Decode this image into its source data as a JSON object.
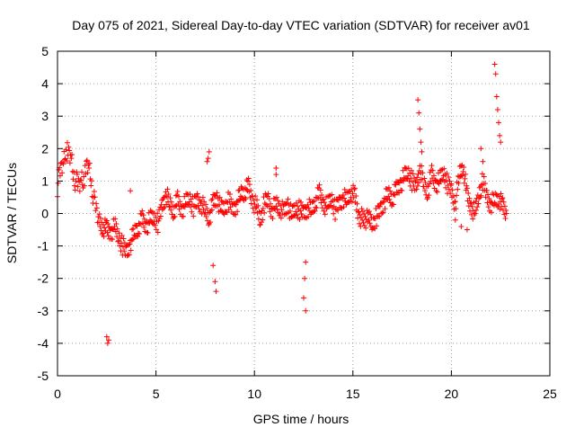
{
  "chart_data": {
    "type": "scatter",
    "title": "Day 075 of 2021, Sidereal Day-to-day VTEC variation (SDTVAR) for receiver av01",
    "xlabel": "GPS time / hours",
    "ylabel": "SDTVAR / TECUs",
    "xlim": [
      0,
      25
    ],
    "ylim": [
      -5,
      5
    ],
    "xticks": [
      "0",
      "5",
      "10",
      "15",
      "20",
      "25"
    ],
    "yticks": [
      "-5",
      "-4",
      "-3",
      "-2",
      "-1",
      "0",
      "1",
      "2",
      "3",
      "4",
      "5"
    ],
    "grid": true,
    "marker": "+",
    "color": "#ff0000",
    "series": [
      {
        "name": "SDTVAR",
        "trend": [
          [
            0.0,
            0.8
          ],
          [
            0.1,
            1.2
          ],
          [
            0.2,
            1.5
          ],
          [
            0.3,
            1.6
          ],
          [
            0.4,
            1.9
          ],
          [
            0.5,
            1.9
          ],
          [
            0.6,
            1.8
          ],
          [
            0.7,
            1.7
          ],
          [
            0.8,
            1.2
          ],
          [
            0.9,
            1.0
          ],
          [
            1.0,
            1.0
          ],
          [
            1.1,
            0.9
          ],
          [
            1.2,
            1.1
          ],
          [
            1.3,
            1.0
          ],
          [
            1.4,
            1.2
          ],
          [
            1.5,
            1.5
          ],
          [
            1.6,
            1.4
          ],
          [
            1.7,
            1.0
          ],
          [
            1.8,
            0.6
          ],
          [
            1.9,
            0.3
          ],
          [
            2.0,
            0.1
          ],
          [
            2.1,
            -0.2
          ],
          [
            2.3,
            -0.4
          ],
          [
            2.5,
            -0.5
          ],
          [
            2.7,
            -0.6
          ],
          [
            2.9,
            -0.4
          ],
          [
            3.1,
            -0.7
          ],
          [
            3.3,
            -1.0
          ],
          [
            3.5,
            -1.2
          ],
          [
            3.7,
            -0.9
          ],
          [
            3.9,
            -0.6
          ],
          [
            4.1,
            -0.4
          ],
          [
            4.3,
            -0.2
          ],
          [
            4.5,
            -0.4
          ],
          [
            4.7,
            -0.2
          ],
          [
            4.9,
            -0.1
          ],
          [
            5.1,
            -0.3
          ],
          [
            5.3,
            0.2
          ],
          [
            5.5,
            0.6
          ],
          [
            5.7,
            0.3
          ],
          [
            5.9,
            0.1
          ],
          [
            6.1,
            0.4
          ],
          [
            6.3,
            0.1
          ],
          [
            6.5,
            0.3
          ],
          [
            6.7,
            0.5
          ],
          [
            6.9,
            0.2
          ],
          [
            7.1,
            0.4
          ],
          [
            7.3,
            0.3
          ],
          [
            7.5,
            0.1
          ],
          [
            7.7,
            -0.1
          ],
          [
            7.9,
            0.3
          ],
          [
            8.1,
            0.5
          ],
          [
            8.3,
            0.1
          ],
          [
            8.5,
            0.2
          ],
          [
            8.7,
            0.4
          ],
          [
            8.9,
            0.1
          ],
          [
            9.1,
            0.3
          ],
          [
            9.3,
            0.6
          ],
          [
            9.5,
            0.7
          ],
          [
            9.7,
            0.8
          ],
          [
            9.9,
            0.4
          ],
          [
            10.1,
            0.2
          ],
          [
            10.3,
            -0.2
          ],
          [
            10.5,
            0.3
          ],
          [
            10.7,
            0.4
          ],
          [
            10.9,
            0.1
          ],
          [
            11.1,
            0.3
          ],
          [
            11.3,
            0.2
          ],
          [
            11.5,
            0.0
          ],
          [
            11.7,
            0.3
          ],
          [
            11.9,
            -0.1
          ],
          [
            12.1,
            0.2
          ],
          [
            12.3,
            0.1
          ],
          [
            12.5,
            0.0
          ],
          [
            12.7,
            0.2
          ],
          [
            12.9,
            0.1
          ],
          [
            13.1,
            0.4
          ],
          [
            13.3,
            0.6
          ],
          [
            13.5,
            0.3
          ],
          [
            13.7,
            0.2
          ],
          [
            13.9,
            0.5
          ],
          [
            14.1,
            0.1
          ],
          [
            14.3,
            0.3
          ],
          [
            14.5,
            0.5
          ],
          [
            14.7,
            0.4
          ],
          [
            14.9,
            0.7
          ],
          [
            15.1,
            0.5
          ],
          [
            15.3,
            -0.1
          ],
          [
            15.8,
            -0.2
          ],
          [
            16.0,
            -0.3
          ],
          [
            16.2,
            -0.1
          ],
          [
            16.4,
            0.1
          ],
          [
            16.6,
            0.4
          ],
          [
            16.8,
            0.6
          ],
          [
            17.0,
            0.5
          ],
          [
            17.2,
            0.7
          ],
          [
            17.4,
            0.9
          ],
          [
            17.6,
            1.1
          ],
          [
            17.8,
            1.3
          ],
          [
            18.0,
            1.0
          ],
          [
            18.2,
            0.8
          ],
          [
            18.4,
            1.4
          ],
          [
            18.6,
            0.9
          ],
          [
            18.8,
            0.7
          ],
          [
            19.0,
            1.2
          ],
          [
            19.2,
            0.9
          ],
          [
            19.4,
            1.0
          ],
          [
            19.6,
            1.3
          ],
          [
            19.8,
            0.9
          ],
          [
            20.0,
            0.7
          ],
          [
            20.2,
            0.3
          ],
          [
            20.4,
            1.2
          ],
          [
            20.6,
            1.5
          ],
          [
            20.8,
            0.5
          ],
          [
            21.0,
            0.2
          ],
          [
            21.2,
            0.0
          ],
          [
            21.4,
            0.6
          ],
          [
            21.6,
            1.0
          ],
          [
            21.8,
            0.5
          ],
          [
            22.0,
            0.3
          ],
          [
            22.2,
            0.4
          ],
          [
            22.4,
            0.5
          ],
          [
            22.6,
            0.2
          ],
          [
            22.8,
            0.0
          ]
        ],
        "outliers": [
          [
            2.5,
            -3.8
          ],
          [
            2.55,
            -4.0
          ],
          [
            2.6,
            -3.9
          ],
          [
            3.7,
            0.7
          ],
          [
            7.6,
            1.6
          ],
          [
            7.65,
            1.7
          ],
          [
            7.7,
            1.9
          ],
          [
            7.9,
            -1.6
          ],
          [
            8.0,
            -2.1
          ],
          [
            8.05,
            -2.4
          ],
          [
            11.1,
            1.4
          ],
          [
            11.1,
            1.2
          ],
          [
            12.6,
            -1.5
          ],
          [
            12.55,
            -2.0
          ],
          [
            12.5,
            -2.6
          ],
          [
            12.6,
            -3.0
          ],
          [
            18.3,
            3.5
          ],
          [
            18.35,
            3.1
          ],
          [
            18.4,
            2.6
          ],
          [
            18.45,
            2.2
          ],
          [
            18.5,
            1.9
          ],
          [
            20.2,
            -0.2
          ],
          [
            20.5,
            -0.4
          ],
          [
            20.8,
            -0.5
          ],
          [
            21.5,
            2.0
          ],
          [
            21.6,
            1.6
          ],
          [
            22.2,
            4.6
          ],
          [
            22.25,
            4.3
          ],
          [
            22.3,
            3.6
          ],
          [
            22.35,
            3.2
          ],
          [
            22.4,
            2.8
          ],
          [
            22.45,
            2.4
          ],
          [
            22.5,
            2.2
          ]
        ]
      }
    ]
  }
}
